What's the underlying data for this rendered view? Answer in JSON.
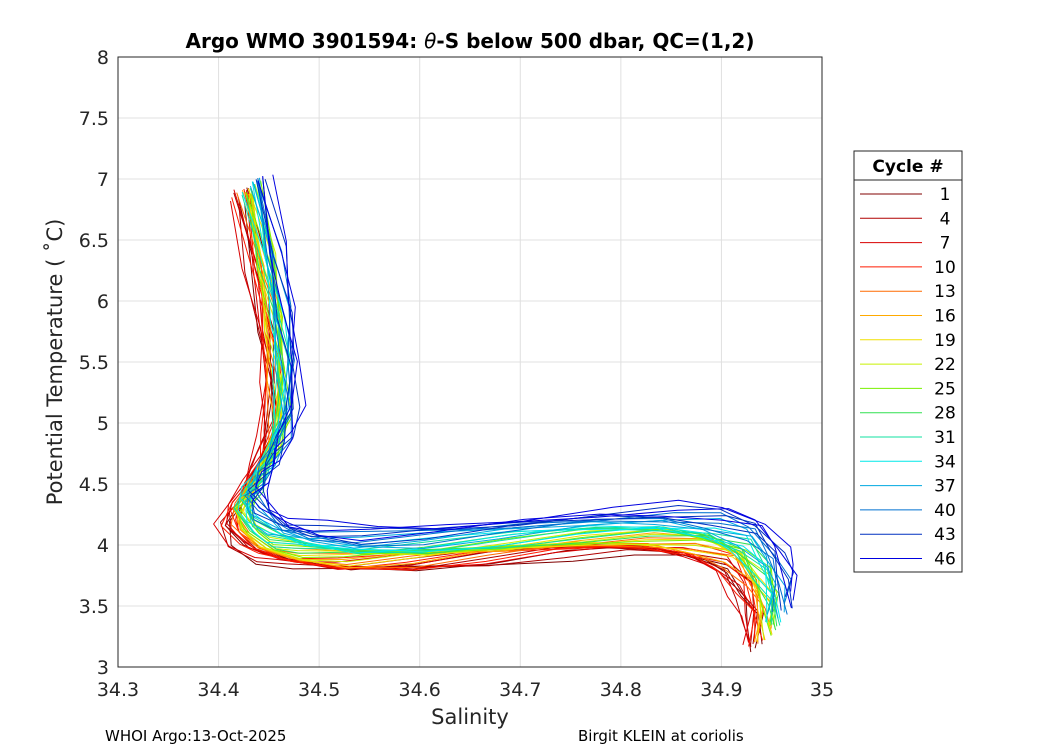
{
  "chart_data": {
    "type": "line",
    "title_prefix": "Argo WMO 3901594: ",
    "title_theta": "θ",
    "title_suffix": "-S below 500 dbar,  QC=(1,2)",
    "xlabel": "Salinity",
    "ylabel": "Potential Temperature ( ˚C)",
    "xlim": [
      34.3,
      35
    ],
    "ylim": [
      3,
      8
    ],
    "xticks": [
      "34.3",
      "34.4",
      "34.5",
      "34.6",
      "34.7",
      "34.8",
      "34.9",
      "35"
    ],
    "yticks": [
      "3",
      "3.5",
      "4",
      "4.5",
      "5",
      "5.5",
      "6",
      "6.5",
      "7",
      "7.5",
      "8"
    ],
    "xtick_values": [
      34.3,
      34.4,
      34.5,
      34.6,
      34.7,
      34.8,
      34.9,
      35.0
    ],
    "ytick_values": [
      3,
      3.5,
      4,
      4.5,
      5,
      5.5,
      6,
      6.5,
      7,
      7.5,
      8
    ],
    "grid": true,
    "legend": {
      "title": "Cycle #",
      "placement": "right",
      "entries": [
        {
          "label": "1",
          "color": "#800000"
        },
        {
          "label": "4",
          "color": "#b00000"
        },
        {
          "label": "7",
          "color": "#d80000"
        },
        {
          "label": "10",
          "color": "#ff1a00"
        },
        {
          "label": "13",
          "color": "#ff6a00"
        },
        {
          "label": "16",
          "color": "#ffaa00"
        },
        {
          "label": "19",
          "color": "#f0e000"
        },
        {
          "label": "22",
          "color": "#c8f000"
        },
        {
          "label": "25",
          "color": "#7af000"
        },
        {
          "label": "28",
          "color": "#30e050"
        },
        {
          "label": "31",
          "color": "#10e0a0"
        },
        {
          "label": "34",
          "color": "#00e8e8"
        },
        {
          "label": "37",
          "color": "#00a8e0"
        },
        {
          "label": "40",
          "color": "#0070d0"
        },
        {
          "label": "43",
          "color": "#0030c0"
        },
        {
          "label": "46",
          "color": "#0000e0"
        }
      ]
    },
    "base_profile": {
      "s": [
        34.43,
        34.445,
        34.455,
        34.46,
        34.46,
        34.452,
        34.44,
        34.43,
        34.42,
        34.43,
        34.45,
        34.48,
        34.53,
        34.6,
        34.68,
        34.76,
        34.83,
        34.88,
        34.915,
        34.935,
        34.945,
        34.945
      ],
      "t": [
        6.9,
        6.3,
        5.8,
        5.4,
        5.0,
        4.75,
        4.55,
        4.4,
        4.25,
        4.1,
        3.98,
        3.92,
        3.88,
        3.9,
        3.96,
        4.02,
        4.04,
        4.0,
        3.9,
        3.7,
        3.5,
        3.25
      ]
    },
    "cycle_offsets": [
      {
        "cycle": "1",
        "ds": -0.01,
        "dt": -0.1
      },
      {
        "cycle": "4",
        "ds": -0.015,
        "dt": -0.08
      },
      {
        "cycle": "7",
        "ds": -0.02,
        "dt": -0.06
      },
      {
        "cycle": "10",
        "ds": -0.012,
        "dt": -0.05
      },
      {
        "cycle": "13",
        "ds": -0.005,
        "dt": -0.02
      },
      {
        "cycle": "16",
        "ds": -0.003,
        "dt": 0.0
      },
      {
        "cycle": "19",
        "ds": 0.0,
        "dt": 0.02
      },
      {
        "cycle": "22",
        "ds": 0.003,
        "dt": 0.04
      },
      {
        "cycle": "25",
        "ds": 0.005,
        "dt": 0.06
      },
      {
        "cycle": "28",
        "ds": 0.007,
        "dt": 0.08
      },
      {
        "cycle": "31",
        "ds": 0.005,
        "dt": 0.1
      },
      {
        "cycle": "34",
        "ds": 0.004,
        "dt": 0.12
      },
      {
        "cycle": "37",
        "ds": 0.01,
        "dt": 0.18
      },
      {
        "cycle": "40",
        "ds": 0.015,
        "dt": 0.22
      },
      {
        "cycle": "43",
        "ds": 0.02,
        "dt": 0.26
      },
      {
        "cycle": "46",
        "ds": 0.025,
        "dt": 0.3
      }
    ]
  },
  "footer": {
    "left": "WHOI Argo:13-Oct-2025",
    "right": "Birgit KLEIN at coriolis"
  }
}
